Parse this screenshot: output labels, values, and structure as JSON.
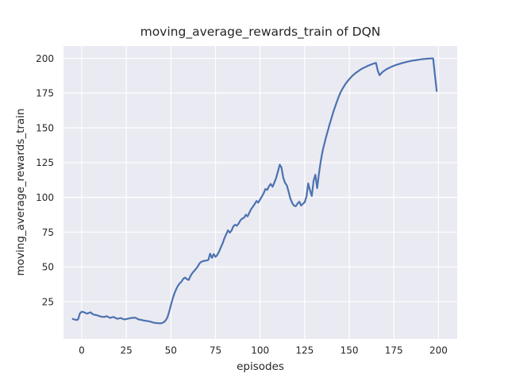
{
  "chart_data": {
    "type": "line",
    "title": "moving_average_rewards_train of DQN",
    "xlabel": "episodes",
    "ylabel": "moving_average_rewards_train",
    "x_ticks": [
      0,
      25,
      50,
      75,
      100,
      125,
      150,
      175,
      200
    ],
    "y_ticks": [
      25,
      50,
      75,
      100,
      125,
      150,
      175,
      200
    ],
    "xlim": [
      -10.2,
      210.5
    ],
    "ylim": [
      -1.8,
      208.8
    ],
    "grid": true,
    "legend_position": "none",
    "style": {
      "figure_background": "#ffffff",
      "axes_background": "#eaeaf2",
      "grid_color": "#ffffff",
      "line_color": "#4c72b0",
      "text_color": "#262626",
      "line_width": 2.2
    },
    "series": [
      {
        "name": "moving_average_rewards_train",
        "points": [
          [
            -5,
            12.6
          ],
          [
            -4,
            12.2
          ],
          [
            -3,
            11.8
          ],
          [
            -2,
            12.3
          ],
          [
            -1,
            16.6
          ],
          [
            0,
            17.8
          ],
          [
            1,
            17.5
          ],
          [
            2,
            17.0
          ],
          [
            3,
            16.4
          ],
          [
            4,
            16.9
          ],
          [
            5,
            17.3
          ],
          [
            6,
            16.2
          ],
          [
            7,
            15.6
          ],
          [
            8,
            15.4
          ],
          [
            9,
            15.1
          ],
          [
            10,
            14.6
          ],
          [
            11,
            14.2
          ],
          [
            12,
            14.0
          ],
          [
            13,
            14.1
          ],
          [
            14,
            14.6
          ],
          [
            15,
            13.9
          ],
          [
            16,
            13.3
          ],
          [
            17,
            13.7
          ],
          [
            18,
            14.0
          ],
          [
            19,
            13.2
          ],
          [
            20,
            12.7
          ],
          [
            21,
            13.0
          ],
          [
            22,
            13.2
          ],
          [
            23,
            12.6
          ],
          [
            24,
            12.2
          ],
          [
            25,
            12.5
          ],
          [
            26,
            12.8
          ],
          [
            27,
            13.1
          ],
          [
            28,
            13.3
          ],
          [
            29,
            13.4
          ],
          [
            30,
            13.5
          ],
          [
            31,
            12.8
          ],
          [
            32,
            12.2
          ],
          [
            33,
            12.0
          ],
          [
            34,
            11.7
          ],
          [
            35,
            11.4
          ],
          [
            36,
            11.2
          ],
          [
            37,
            11.0
          ],
          [
            38,
            10.8
          ],
          [
            39,
            10.4
          ],
          [
            40,
            10.0
          ],
          [
            41,
            9.8
          ],
          [
            42,
            9.6
          ],
          [
            43,
            9.5
          ],
          [
            44,
            9.4
          ],
          [
            45,
            9.6
          ],
          [
            46,
            10.2
          ],
          [
            47,
            11.5
          ],
          [
            48,
            13.5
          ],
          [
            49,
            17.5
          ],
          [
            50,
            22.5
          ],
          [
            51,
            27.0
          ],
          [
            52,
            31.0
          ],
          [
            53,
            34.0
          ],
          [
            54,
            36.5
          ],
          [
            55,
            38.2
          ],
          [
            56,
            39.5
          ],
          [
            57,
            41.5
          ],
          [
            58,
            42.3
          ],
          [
            59,
            41.2
          ],
          [
            60,
            40.6
          ],
          [
            61,
            43.5
          ],
          [
            62,
            45.5
          ],
          [
            63,
            47.0
          ],
          [
            64,
            48.5
          ],
          [
            65,
            50.2
          ],
          [
            66,
            52.5
          ],
          [
            67,
            53.6
          ],
          [
            68,
            54.1
          ],
          [
            69,
            54.4
          ],
          [
            70,
            54.6
          ],
          [
            71,
            55.0
          ],
          [
            72,
            59.5
          ],
          [
            73,
            56.5
          ],
          [
            74,
            59.2
          ],
          [
            75,
            57.2
          ],
          [
            76,
            58.6
          ],
          [
            77,
            61.0
          ],
          [
            78,
            64.0
          ],
          [
            79,
            67.0
          ],
          [
            80,
            70.5
          ],
          [
            81,
            73.5
          ],
          [
            82,
            76.3
          ],
          [
            83,
            74.6
          ],
          [
            84,
            76.1
          ],
          [
            85,
            79.2
          ],
          [
            86,
            80.3
          ],
          [
            87,
            79.6
          ],
          [
            88,
            81.2
          ],
          [
            89,
            83.5
          ],
          [
            90,
            84.8
          ],
          [
            91,
            85.3
          ],
          [
            92,
            87.5
          ],
          [
            93,
            86.3
          ],
          [
            94,
            89.0
          ],
          [
            95,
            91.5
          ],
          [
            96,
            93.4
          ],
          [
            97,
            95.2
          ],
          [
            98,
            97.4
          ],
          [
            99,
            96.2
          ],
          [
            100,
            98.5
          ],
          [
            101,
            100.6
          ],
          [
            102,
            103.0
          ],
          [
            103,
            106.0
          ],
          [
            104,
            105.4
          ],
          [
            105,
            108.0
          ],
          [
            106,
            109.6
          ],
          [
            107,
            107.6
          ],
          [
            108,
            110.5
          ],
          [
            109,
            114.0
          ],
          [
            110,
            118.5
          ],
          [
            111,
            123.5
          ],
          [
            112,
            121.5
          ],
          [
            113,
            114.0
          ],
          [
            114,
            110.4
          ],
          [
            115,
            108.6
          ],
          [
            116,
            104.0
          ],
          [
            117,
            99.0
          ],
          [
            118,
            96.0
          ],
          [
            119,
            94.0
          ],
          [
            120,
            93.6
          ],
          [
            121,
            95.5
          ],
          [
            122,
            96.9
          ],
          [
            123,
            94.1
          ],
          [
            124,
            95.4
          ],
          [
            125,
            96.4
          ],
          [
            126,
            100.5
          ],
          [
            127,
            110.0
          ],
          [
            128,
            105.0
          ],
          [
            129,
            101.0
          ],
          [
            130,
            112.0
          ],
          [
            131,
            116.2
          ],
          [
            132,
            106.6
          ],
          [
            133,
            117.0
          ],
          [
            134,
            126.0
          ],
          [
            135,
            133.0
          ],
          [
            136,
            138.5
          ],
          [
            137,
            143.4
          ],
          [
            138,
            148.0
          ],
          [
            139,
            152.6
          ],
          [
            140,
            157.0
          ],
          [
            141,
            161.2
          ],
          [
            142,
            165.0
          ],
          [
            143,
            168.6
          ],
          [
            144,
            172.0
          ],
          [
            145,
            175.2
          ],
          [
            146,
            177.6
          ],
          [
            147,
            179.8
          ],
          [
            148,
            181.8
          ],
          [
            149,
            183.4
          ],
          [
            150,
            185.0
          ],
          [
            151,
            186.4
          ],
          [
            152,
            187.7
          ],
          [
            153,
            188.8
          ],
          [
            154,
            189.8
          ],
          [
            155,
            190.7
          ],
          [
            156,
            191.6
          ],
          [
            157,
            192.4
          ],
          [
            158,
            193.1
          ],
          [
            159,
            193.7
          ],
          [
            160,
            194.3
          ],
          [
            161,
            194.9
          ],
          [
            162,
            195.4
          ],
          [
            163,
            195.9
          ],
          [
            164,
            196.3
          ],
          [
            165,
            196.7
          ],
          [
            166,
            191.0
          ],
          [
            167,
            187.8
          ],
          [
            168,
            189.3
          ],
          [
            169,
            190.5
          ],
          [
            170,
            191.4
          ],
          [
            171,
            192.2
          ],
          [
            172,
            192.9
          ],
          [
            173,
            193.5
          ],
          [
            174,
            194.1
          ],
          [
            175,
            194.6
          ],
          [
            176,
            195.1
          ],
          [
            177,
            195.5
          ],
          [
            178,
            195.9
          ],
          [
            179,
            196.3
          ],
          [
            180,
            196.7
          ],
          [
            181,
            197.0
          ],
          [
            182,
            197.3
          ],
          [
            183,
            197.6
          ],
          [
            184,
            197.9
          ],
          [
            185,
            198.2
          ],
          [
            186,
            198.4
          ],
          [
            187,
            198.6
          ],
          [
            188,
            198.8
          ],
          [
            189,
            199.0
          ],
          [
            190,
            199.2
          ],
          [
            191,
            199.4
          ],
          [
            192,
            199.5
          ],
          [
            193,
            199.6
          ],
          [
            194,
            199.7
          ],
          [
            195,
            199.8
          ],
          [
            196,
            199.9
          ],
          [
            197,
            199.9
          ],
          [
            198,
            188.0
          ],
          [
            199,
            176.5
          ]
        ]
      }
    ]
  }
}
